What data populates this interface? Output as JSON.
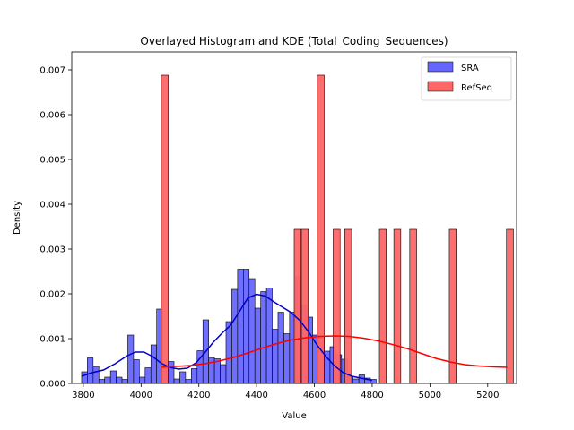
{
  "chart_data": {
    "type": "histogram",
    "title": "Overlayed Histogram and KDE (Total_Coding_Sequences)",
    "xlabel": "Value",
    "ylabel": "Density",
    "xlim": [
      3760,
      5300
    ],
    "ylim": [
      0,
      0.0074
    ],
    "xticks": [
      3800,
      4000,
      4200,
      4400,
      4600,
      4800,
      5000,
      5200
    ],
    "yticks": [
      0.0,
      0.001,
      0.002,
      0.003,
      0.004,
      0.005,
      0.006,
      0.007
    ],
    "legend_position": "top-right",
    "grid": false,
    "series": [
      {
        "name": "SRA",
        "face_color": "#6666ff",
        "edge_color": "#000000",
        "kde_color": "#0000cc",
        "bin_width": 20,
        "bins": [
          [
            3794,
            0.00026
          ],
          [
            3814,
            0.00057
          ],
          [
            3834,
            0.00038
          ],
          [
            3854,
            9e-05
          ],
          [
            3874,
            0.00014
          ],
          [
            3894,
            0.00028
          ],
          [
            3914,
            0.00014
          ],
          [
            3934,
            9e-05
          ],
          [
            3954,
            0.00108
          ],
          [
            3974,
            0.00053
          ],
          [
            3994,
            0.00014
          ],
          [
            4014,
            0.00035
          ],
          [
            4034,
            0.00086
          ],
          [
            4054,
            0.00166
          ],
          [
            4074,
            0.00035
          ],
          [
            4094,
            0.00049
          ],
          [
            4114,
            0.0001
          ],
          [
            4134,
            0.00026
          ],
          [
            4154,
            9e-05
          ],
          [
            4174,
            0.00033
          ],
          [
            4194,
            0.00073
          ],
          [
            4214,
            0.00142
          ],
          [
            4234,
            0.00058
          ],
          [
            4254,
            0.00055
          ],
          [
            4274,
            0.00042
          ],
          [
            4294,
            0.00138
          ],
          [
            4314,
            0.0021
          ],
          [
            4334,
            0.00255
          ],
          [
            4354,
            0.00255
          ],
          [
            4374,
            0.00234
          ],
          [
            4394,
            0.00168
          ],
          [
            4414,
            0.00205
          ],
          [
            4434,
            0.00213
          ],
          [
            4454,
            0.00121
          ],
          [
            4474,
            0.00159
          ],
          [
            4494,
            0.00111
          ],
          [
            4514,
            0.00159
          ],
          [
            4534,
            0.00238
          ],
          [
            4554,
            0.00174
          ],
          [
            4574,
            0.00148
          ],
          [
            4594,
            0.00108
          ],
          [
            4614,
            0.00104
          ],
          [
            4634,
            0.00072
          ],
          [
            4654,
            0.00082
          ],
          [
            4674,
            0.00064
          ],
          [
            4694,
            0.00054
          ],
          [
            4714,
            0.00015
          ],
          [
            4734,
            0.0001
          ],
          [
            4754,
            0.00019
          ],
          [
            4774,
            0.00012
          ],
          [
            4794,
            9e-05
          ]
        ],
        "kde": [
          [
            3794,
            0.00016
          ],
          [
            3830,
            0.00024
          ],
          [
            3870,
            0.0003
          ],
          [
            3910,
            0.00044
          ],
          [
            3950,
            0.00061
          ],
          [
            3980,
            0.0007
          ],
          [
            4010,
            0.0007
          ],
          [
            4040,
            0.0006
          ],
          [
            4070,
            0.00045
          ],
          [
            4100,
            0.00036
          ],
          [
            4130,
            0.00032
          ],
          [
            4160,
            0.00034
          ],
          [
            4190,
            0.00046
          ],
          [
            4220,
            0.00068
          ],
          [
            4250,
            0.00092
          ],
          [
            4280,
            0.00112
          ],
          [
            4310,
            0.0013
          ],
          [
            4340,
            0.0016
          ],
          [
            4370,
            0.00191
          ],
          [
            4400,
            0.00199
          ],
          [
            4430,
            0.00195
          ],
          [
            4460,
            0.00182
          ],
          [
            4490,
            0.0017
          ],
          [
            4520,
            0.00158
          ],
          [
            4550,
            0.0014
          ],
          [
            4580,
            0.00115
          ],
          [
            4610,
            0.00085
          ],
          [
            4640,
            0.0006
          ],
          [
            4670,
            0.00039
          ],
          [
            4700,
            0.00024
          ],
          [
            4730,
            0.00016
          ],
          [
            4760,
            0.00012
          ],
          [
            4800,
            7e-05
          ]
        ]
      },
      {
        "name": "RefSeq",
        "face_color": "#ff6666",
        "edge_color": "#000000",
        "kde_color": "#ff0000",
        "bin_width": 24,
        "bins": [
          [
            4070,
            0.00688
          ],
          [
            4530,
            0.00344
          ],
          [
            4555,
            0.00344
          ],
          [
            4610,
            0.00688
          ],
          [
            4665,
            0.00344
          ],
          [
            4705,
            0.00344
          ],
          [
            4825,
            0.00344
          ],
          [
            4875,
            0.00344
          ],
          [
            4930,
            0.00344
          ],
          [
            5067,
            0.00344
          ],
          [
            5265,
            0.00344
          ]
        ],
        "kde": [
          [
            4068,
            0.00036
          ],
          [
            4120,
            0.00038
          ],
          [
            4170,
            0.0004
          ],
          [
            4220,
            0.00044
          ],
          [
            4270,
            0.0005
          ],
          [
            4320,
            0.00058
          ],
          [
            4370,
            0.00068
          ],
          [
            4420,
            0.00079
          ],
          [
            4470,
            0.00089
          ],
          [
            4520,
            0.00097
          ],
          [
            4570,
            0.00102
          ],
          [
            4620,
            0.00105
          ],
          [
            4670,
            0.00106
          ],
          [
            4720,
            0.00105
          ],
          [
            4770,
            0.00101
          ],
          [
            4820,
            0.00095
          ],
          [
            4870,
            0.00087
          ],
          [
            4920,
            0.00078
          ],
          [
            4970,
            0.00067
          ],
          [
            5020,
            0.00056
          ],
          [
            5070,
            0.00048
          ],
          [
            5120,
            0.00042
          ],
          [
            5170,
            0.00039
          ],
          [
            5220,
            0.00037
          ],
          [
            5268,
            0.00036
          ]
        ]
      }
    ]
  }
}
